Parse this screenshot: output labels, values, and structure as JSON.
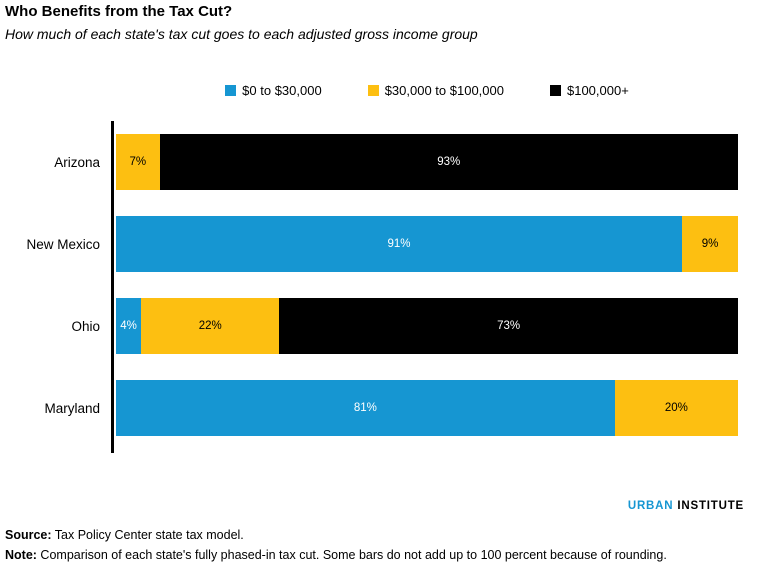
{
  "chart_data": {
    "type": "bar",
    "orientation": "horizontal",
    "stacked": true,
    "title": "Who Benefits from the Tax Cut?",
    "subtitle": "How much of each state's tax cut goes to each adjusted gross income group",
    "categories": [
      "Arizona",
      "New Mexico",
      "Ohio",
      "Maryland"
    ],
    "series": [
      {
        "name": "$0 to $30,000",
        "color": "#1696d2",
        "label_color": "#ffffff",
        "values": [
          0,
          91,
          4,
          81
        ]
      },
      {
        "name": "$30,000 to $100,000",
        "color": "#fdbf11",
        "label_color": "#000000",
        "values": [
          7,
          9,
          22,
          20
        ]
      },
      {
        "name": "$100,000+",
        "color": "#000000",
        "label_color": "#ffffff",
        "values": [
          93,
          0,
          73,
          0
        ]
      }
    ],
    "value_suffix": "%",
    "xlim": [
      0,
      100
    ],
    "legend_position": "top-center",
    "bar_labels": "inside-center",
    "grid": false
  },
  "footer": {
    "logo_part1": "URBAN",
    "logo_part2": "INSTITUTE",
    "source_label": "Source:",
    "source_text": " Tax Policy Center state tax model.",
    "note_label": "Note:",
    "note_text": " Comparison of each state's fully phased-in tax cut. Some bars do not add up to 100 percent because of rounding."
  },
  "colors": {
    "axis": "#000000",
    "logo_urban": "#1696d2",
    "logo_institute": "#000000"
  }
}
